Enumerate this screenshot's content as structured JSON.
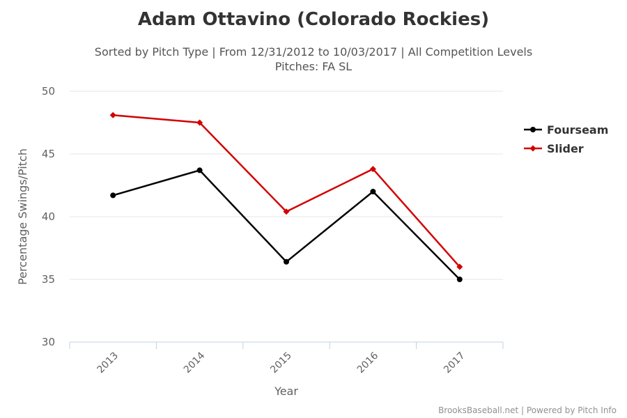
{
  "chart_data": {
    "type": "line",
    "title": "Adam Ottavino (Colorado Rockies)",
    "subtitle_line1": "Sorted by Pitch Type | From 12/31/2012 to 10/03/2017 | All Competition Levels",
    "subtitle_line2": "Pitches: FA SL",
    "xlabel": "Year",
    "ylabel": "Percentage Swings/Pitch",
    "categories": [
      "2013",
      "2014",
      "2015",
      "2016",
      "2017"
    ],
    "ylim": [
      30,
      50
    ],
    "yticks": [
      "30",
      "35",
      "40",
      "45",
      "50"
    ],
    "grid": true,
    "legend_position": "right",
    "series": [
      {
        "name": "Fourseam",
        "color": "#000000",
        "marker": "circle",
        "values": [
          41.7,
          43.7,
          36.4,
          42.0,
          35.0
        ]
      },
      {
        "name": "Slider",
        "color": "#d40000",
        "marker": "diamond",
        "values": [
          48.1,
          47.5,
          40.4,
          43.8,
          36.0
        ]
      }
    ],
    "credits": "BrooksBaseball.net | Powered by Pitch Info"
  }
}
